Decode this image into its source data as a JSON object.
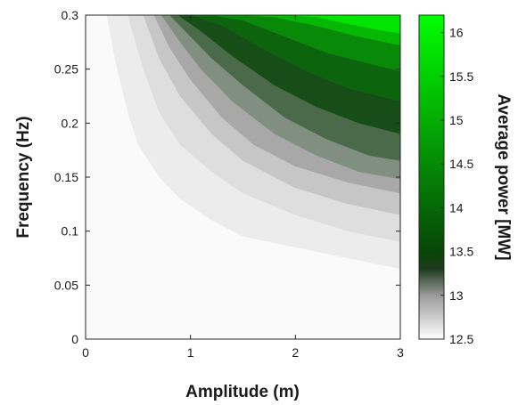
{
  "chart_data": {
    "type": "heatmap",
    "plot_kind": "filled-contour",
    "xlabel": "Amplitude (m)",
    "ylabel": "Frequency (Hz)",
    "colorbar_label": "Average power [MW]",
    "xlim": [
      0,
      3
    ],
    "ylim": [
      0,
      0.3
    ],
    "x_ticks": [
      0,
      1,
      2,
      3
    ],
    "x_tick_labels": [
      "0",
      "1",
      "2",
      "3"
    ],
    "y_ticks": [
      0,
      0.05,
      0.1,
      0.15,
      0.2,
      0.25,
      0.3
    ],
    "y_tick_labels": [
      "0",
      "0.05",
      "0.1",
      "0.15",
      "0.2",
      "0.25",
      "0.3"
    ],
    "colorbar_range": [
      12.5,
      16.2
    ],
    "colorbar_ticks": [
      12.5,
      13,
      13.5,
      14,
      14.5,
      15,
      15.5,
      16
    ],
    "colorbar_tick_labels": [
      "12.5",
      "13",
      "13.5",
      "14",
      "14.5",
      "15",
      "15.5",
      "16"
    ],
    "colormap": [
      {
        "value": 12.5,
        "color": "#ffffff"
      },
      {
        "value": 13.0,
        "color": "#9a9a9a"
      },
      {
        "value": 13.3,
        "color": "#1e3c1e"
      },
      {
        "value": 13.5,
        "color": "#074607"
      },
      {
        "value": 16.2,
        "color": "#00ff00"
      }
    ],
    "contour_levels": [
      {
        "level": 12.6,
        "color": "#fafafa",
        "boundary": [
          [
            0.05,
            0.3
          ],
          [
            0.1,
            0.2
          ],
          [
            0.2,
            0.13
          ],
          [
            0.4,
            0.09
          ],
          [
            0.7,
            0.055
          ],
          [
            1.0,
            0.048
          ],
          [
            1.5,
            0.045
          ],
          [
            2.0,
            0.04
          ],
          [
            2.5,
            0.035
          ],
          [
            3.0,
            0.03
          ]
        ]
      },
      {
        "level": 12.75,
        "color": "#ececec",
        "boundary": [
          [
            0.2,
            0.3
          ],
          [
            0.3,
            0.25
          ],
          [
            0.4,
            0.21
          ],
          [
            0.5,
            0.18
          ],
          [
            0.7,
            0.15
          ],
          [
            0.9,
            0.13
          ],
          [
            1.2,
            0.11
          ],
          [
            1.5,
            0.095
          ],
          [
            2.0,
            0.085
          ],
          [
            2.5,
            0.075
          ],
          [
            3.0,
            0.065
          ]
        ]
      },
      {
        "level": 12.85,
        "color": "#dedede",
        "boundary": [
          [
            0.4,
            0.3
          ],
          [
            0.55,
            0.25
          ],
          [
            0.7,
            0.21
          ],
          [
            0.9,
            0.18
          ],
          [
            1.2,
            0.155
          ],
          [
            1.5,
            0.135
          ],
          [
            2.0,
            0.115
          ],
          [
            2.5,
            0.1
          ],
          [
            3.0,
            0.09
          ]
        ]
      },
      {
        "level": 12.93,
        "color": "#c6c6c6",
        "boundary": [
          [
            0.55,
            0.3
          ],
          [
            0.7,
            0.26
          ],
          [
            0.9,
            0.225
          ],
          [
            1.2,
            0.19
          ],
          [
            1.5,
            0.165
          ],
          [
            2.0,
            0.14
          ],
          [
            2.5,
            0.125
          ],
          [
            3.0,
            0.115
          ]
        ]
      },
      {
        "level": 13.0,
        "color": "#a8a8a8",
        "boundary": [
          [
            0.65,
            0.3
          ],
          [
            0.8,
            0.27
          ],
          [
            1.0,
            0.24
          ],
          [
            1.3,
            0.205
          ],
          [
            1.6,
            0.18
          ],
          [
            2.0,
            0.16
          ],
          [
            2.5,
            0.145
          ],
          [
            3.0,
            0.135
          ]
        ]
      },
      {
        "level": 13.1,
        "color": "#808f80",
        "boundary": [
          [
            0.72,
            0.3
          ],
          [
            0.9,
            0.275
          ],
          [
            1.1,
            0.25
          ],
          [
            1.4,
            0.22
          ],
          [
            1.8,
            0.19
          ],
          [
            2.2,
            0.17
          ],
          [
            2.6,
            0.155
          ],
          [
            3.0,
            0.148
          ]
        ]
      },
      {
        "level": 13.2,
        "color": "#4a6a4a",
        "boundary": [
          [
            0.8,
            0.3
          ],
          [
            1.0,
            0.28
          ],
          [
            1.2,
            0.26
          ],
          [
            1.5,
            0.235
          ],
          [
            1.9,
            0.205
          ],
          [
            2.3,
            0.185
          ],
          [
            2.7,
            0.17
          ],
          [
            3.0,
            0.165
          ]
        ]
      },
      {
        "level": 13.4,
        "color": "#174d17",
        "boundary": [
          [
            0.88,
            0.3
          ],
          [
            1.1,
            0.285
          ],
          [
            1.4,
            0.262
          ],
          [
            1.8,
            0.235
          ],
          [
            2.2,
            0.215
          ],
          [
            2.6,
            0.2
          ],
          [
            3.0,
            0.19
          ]
        ]
      },
      {
        "level": 13.8,
        "color": "#0c640c",
        "boundary": [
          [
            1.0,
            0.3
          ],
          [
            1.3,
            0.29
          ],
          [
            1.7,
            0.268
          ],
          [
            2.1,
            0.248
          ],
          [
            2.5,
            0.232
          ],
          [
            3.0,
            0.22
          ]
        ]
      },
      {
        "level": 14.3,
        "color": "#088a08",
        "boundary": [
          [
            1.2,
            0.3
          ],
          [
            1.5,
            0.295
          ],
          [
            1.9,
            0.28
          ],
          [
            2.3,
            0.265
          ],
          [
            2.7,
            0.255
          ],
          [
            3.0,
            0.248
          ]
        ]
      },
      {
        "level": 15.0,
        "color": "#04b804",
        "boundary": [
          [
            1.45,
            0.3
          ],
          [
            1.8,
            0.298
          ],
          [
            2.2,
            0.29
          ],
          [
            2.6,
            0.28
          ],
          [
            3.0,
            0.272
          ]
        ]
      },
      {
        "level": 15.7,
        "color": "#00e600",
        "boundary": [
          [
            1.9,
            0.3
          ],
          [
            2.2,
            0.298
          ],
          [
            2.5,
            0.292
          ],
          [
            2.8,
            0.286
          ],
          [
            3.0,
            0.283
          ]
        ]
      }
    ]
  }
}
